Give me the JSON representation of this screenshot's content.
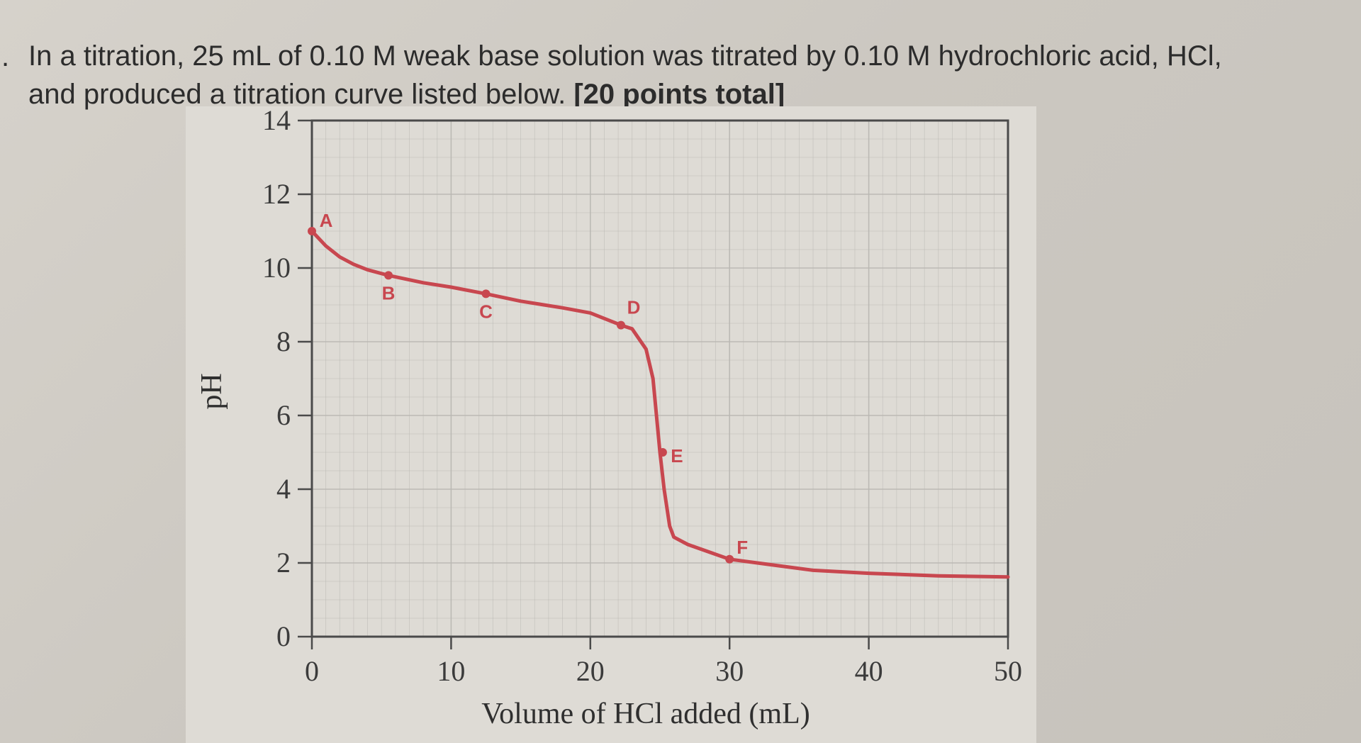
{
  "question": {
    "line1": "In a titration, 25 mL of 0.10 M weak base solution was titrated by 0.10 M hydrochloric acid, HCl,",
    "line2_prefix": "and produced a titration curve listed below. ",
    "points_text": "[20 points total]"
  },
  "colors": {
    "curve": "#c8474f",
    "frame": "#4a4a4a",
    "grid": "#b9b7b2",
    "background": "#dedbd5"
  },
  "chart_data": {
    "type": "line",
    "title": "",
    "xlabel": "Volume of HCl added (mL)",
    "ylabel": "pH",
    "xlim": [
      0,
      50
    ],
    "ylim": [
      0,
      14
    ],
    "xticks": [
      "0",
      "10",
      "20",
      "30",
      "40",
      "50"
    ],
    "yticks": [
      "0",
      "2",
      "4",
      "6",
      "8",
      "10",
      "12",
      "14"
    ],
    "grid": true,
    "series": [
      {
        "x": [
          0,
          1,
          2,
          3,
          4,
          5.5,
          8,
          10,
          12.5,
          15,
          18,
          20,
          22.2,
          23,
          24,
          24.5,
          25,
          25.3,
          25.7,
          26,
          27,
          28.5,
          30,
          33,
          36,
          40,
          45,
          50
        ],
        "y": [
          11.0,
          10.6,
          10.3,
          10.1,
          9.95,
          9.8,
          9.6,
          9.48,
          9.3,
          9.1,
          8.92,
          8.78,
          8.45,
          8.35,
          7.8,
          7.0,
          5.0,
          4.0,
          3.0,
          2.7,
          2.5,
          2.3,
          2.1,
          1.95,
          1.8,
          1.72,
          1.65,
          1.62
        ]
      }
    ],
    "points": [
      {
        "label": "A",
        "x": 0,
        "y": 11.0
      },
      {
        "label": "B",
        "x": 5.5,
        "y": 9.8
      },
      {
        "label": "C",
        "x": 12.5,
        "y": 9.3
      },
      {
        "label": "D",
        "x": 22.2,
        "y": 8.45
      },
      {
        "label": "E",
        "x": 25.2,
        "y": 5.0
      },
      {
        "label": "F",
        "x": 30,
        "y": 2.1
      }
    ]
  }
}
